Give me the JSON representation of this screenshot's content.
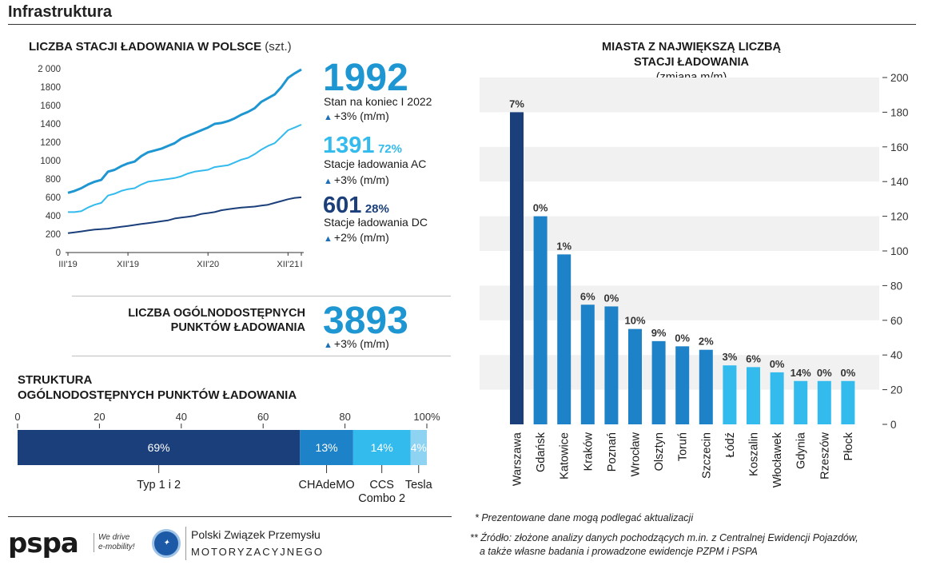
{
  "header": {
    "title": "Infrastruktura"
  },
  "line_section": {
    "title": "LICZBA STACJI ŁADOWANIA W POLSCE",
    "unit": "(szt.)",
    "total": {
      "value": "1992",
      "label": "Stan na koniec I 2022",
      "change": "+3% (m/m)"
    },
    "ac": {
      "value": "1391",
      "share": "72%",
      "label": "Stacje ładowania AC",
      "change": "+3% (m/m)"
    },
    "dc": {
      "value": "601",
      "share": "28%",
      "label": "Stacje ładowania DC",
      "change": "+2% (m/m)"
    }
  },
  "points_section": {
    "title_line1": "LICZBA OGÓLNODOSTĘPNYCH",
    "title_line2": "PUNKTÓW ŁADOWANIA",
    "value": "3893",
    "change": "+3% (m/m)"
  },
  "structure_section": {
    "title_line1": "STRUKTURA",
    "title_line2": "OGÓLNODOSTĘPNYCH PUNKTÓW ŁADOWANIA"
  },
  "bar_section": {
    "title_line1": "MIASTA Z NAJWIĘKSZĄ LICZBĄ",
    "title_line2": "STACJI ŁADOWANIA",
    "title_line3": "(zmiana m/m)"
  },
  "footnotes": {
    "note1": "* Prezentowane dane mogą podlegać aktualizacji",
    "note2_line1": "** Źródło: złożone analizy danych pochodzących m.in. z Centralnej Ewidencji Pojazdów,",
    "note2_line2": "a także własne badania i prowadzone ewidencje PZPM i PSPA"
  },
  "logos": {
    "pspa": "pspa",
    "we_drive_line1": "We drive",
    "we_drive_line2": "e-mobility!",
    "pzpm_line1": "Polski Związek Przemysłu",
    "pzpm_line2": "MOTORYZACYJNEGO"
  },
  "colors": {
    "dark_navy": "#1b3f7a",
    "mid_blue": "#1e82c8",
    "light_blue": "#33bbee",
    "pale_blue": "#8fd3f3",
    "accent": "#1e96d2"
  },
  "chart_data": [
    {
      "type": "line",
      "x_tick_labels": [
        "III'19",
        "XII'19",
        "XII'20",
        "XII'21",
        "I"
      ],
      "y_ticks": [
        "0",
        "200",
        "400",
        "600",
        "800",
        "1000",
        "1200",
        "1400",
        "1600",
        "1800",
        "2 000"
      ],
      "ylim": [
        0,
        2000
      ],
      "grid": false,
      "series": [
        {
          "name": "Stan na koniec I 2022",
          "color": "#1e96d2",
          "values": [
            650,
            670,
            700,
            740,
            770,
            790,
            880,
            900,
            940,
            970,
            990,
            1050,
            1090,
            1110,
            1130,
            1160,
            1190,
            1240,
            1270,
            1300,
            1330,
            1360,
            1400,
            1410,
            1430,
            1460,
            1500,
            1530,
            1570,
            1640,
            1680,
            1720,
            1800,
            1900,
            1950,
            1992
          ]
        },
        {
          "name": "Stacje ładowania AC",
          "color": "#33bbee",
          "values": [
            440,
            440,
            450,
            490,
            520,
            540,
            620,
            640,
            670,
            690,
            700,
            740,
            770,
            780,
            790,
            800,
            810,
            830,
            860,
            880,
            890,
            900,
            930,
            940,
            950,
            980,
            1010,
            1030,
            1070,
            1120,
            1160,
            1190,
            1260,
            1330,
            1360,
            1391
          ]
        },
        {
          "name": "Stacje ładowania DC",
          "color": "#1b3f7a",
          "values": [
            210,
            220,
            230,
            240,
            250,
            255,
            260,
            270,
            280,
            290,
            300,
            310,
            320,
            330,
            340,
            350,
            370,
            380,
            390,
            400,
            420,
            430,
            440,
            460,
            470,
            480,
            490,
            495,
            500,
            510,
            520,
            540,
            560,
            580,
            595,
            601
          ]
        }
      ]
    },
    {
      "type": "bar",
      "orientation": "horizontal-stacked",
      "axis_ticks": [
        "0",
        "20",
        "40",
        "60",
        "80",
        "100%"
      ],
      "xlim": [
        0,
        100
      ],
      "segments": [
        {
          "name": "Typ 1 i 2",
          "value": 69,
          "label": "69%",
          "color": "#1b3f7a"
        },
        {
          "name": "CHAdeMO",
          "value": 13,
          "label": "13%",
          "color": "#1e82c8"
        },
        {
          "name": "CCS Combo 2",
          "value": 14,
          "label": "14%",
          "color": "#33bbee"
        },
        {
          "name": "Tesla",
          "value": 4,
          "label": "4%",
          "color": "#8fd3f3"
        }
      ]
    },
    {
      "type": "bar",
      "y_ticks": [
        "0",
        "20",
        "40",
        "60",
        "80",
        "100",
        "120",
        "140",
        "160",
        "180",
        "200"
      ],
      "ylim": [
        0,
        200
      ],
      "grid": "alternating bands",
      "categories": [
        "Warszawa",
        "Gdańsk",
        "Katowice",
        "Kraków",
        "Poznań",
        "Wrocław",
        "Olsztyn",
        "Toruń",
        "Szczecin",
        "Łódź",
        "Koszalin",
        "Włocławek",
        "Gdynia",
        "Rzeszów",
        "Płock"
      ],
      "values": [
        180,
        120,
        98,
        69,
        68,
        55,
        48,
        45,
        43,
        34,
        33,
        30,
        25,
        25,
        25
      ],
      "labels": [
        "7%",
        "0%",
        "1%",
        "6%",
        "0%",
        "10%",
        "9%",
        "0%",
        "2%",
        "3%",
        "6%",
        "0%",
        "14%",
        "0%",
        "0%"
      ],
      "colors": [
        "#1b3f7a",
        "#1e82c8",
        "#1e82c8",
        "#1e82c8",
        "#1e82c8",
        "#1e82c8",
        "#1e82c8",
        "#1e82c8",
        "#1e82c8",
        "#33bbee",
        "#33bbee",
        "#33bbee",
        "#33bbee",
        "#33bbee",
        "#33bbee"
      ]
    }
  ]
}
